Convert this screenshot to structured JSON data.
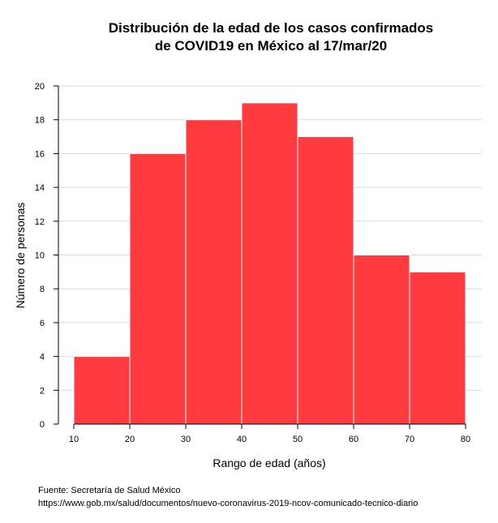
{
  "chart_data": {
    "type": "bar",
    "title_lines": [
      "Distribución de la edad de los casos confirmados",
      "de COVID19 en México al 17/mar/20"
    ],
    "xlabel": "Rango de edad (años)",
    "ylabel": "Número de personas",
    "bins": [
      {
        "start": 10,
        "end": 20,
        "value": 4
      },
      {
        "start": 20,
        "end": 30,
        "value": 16
      },
      {
        "start": 30,
        "end": 40,
        "value": 18
      },
      {
        "start": 40,
        "end": 50,
        "value": 19
      },
      {
        "start": 50,
        "end": 60,
        "value": 17
      },
      {
        "start": 60,
        "end": 70,
        "value": 10
      },
      {
        "start": 70,
        "end": 80,
        "value": 9
      }
    ],
    "x_ticks": [
      "10",
      "20",
      "30",
      "40",
      "50",
      "60",
      "70",
      "80"
    ],
    "y_ticks": [
      "0",
      "2",
      "4",
      "6",
      "8",
      "10",
      "12",
      "14",
      "16",
      "18",
      "20"
    ],
    "xlim": [
      10,
      80
    ],
    "ylim": [
      0,
      20
    ],
    "grid": "horizontal",
    "bar_color": "#ff3b3f",
    "grid_color": "#d9d9d9"
  },
  "source": {
    "line1": "Fuente: Secretaría de Salud México",
    "line2": "https://www.gob.mx/salud/documentos/nuevo-coronavirus-2019-ncov-comunicado-tecnico-diario"
  }
}
